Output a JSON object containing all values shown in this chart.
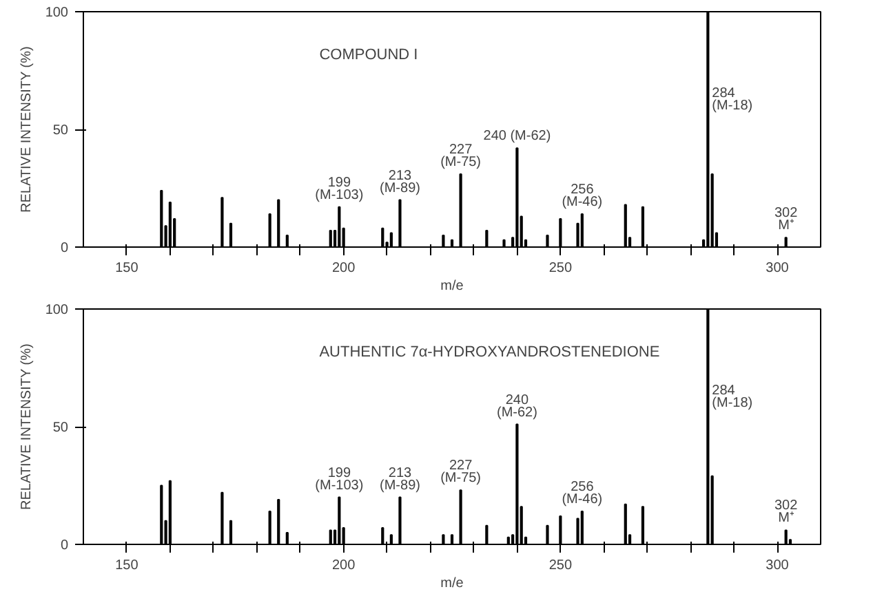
{
  "chart_data": [
    {
      "type": "bar",
      "title": "COMPOUND I",
      "xlabel": "m/e",
      "ylabel": "RELATIVE INTENSITY (%)",
      "xlim": [
        140,
        310
      ],
      "ylim": [
        0,
        100
      ],
      "xticks": [
        150,
        {
          "value": 160,
          "label": null
        },
        {
          "value": 170,
          "label": null
        },
        {
          "value": 180,
          "label": null
        },
        {
          "value": 190,
          "label": null
        },
        200,
        {
          "value": 210,
          "label": null
        },
        {
          "value": 220,
          "label": null
        },
        {
          "value": 230,
          "label": null
        },
        {
          "value": 240,
          "label": null
        },
        250,
        {
          "value": 260,
          "label": null
        },
        {
          "value": 270,
          "label": null
        },
        {
          "value": 280,
          "label": null
        },
        {
          "value": 290,
          "label": null
        },
        300
      ],
      "yticks": [
        0,
        50,
        100
      ],
      "grid": false,
      "color": "#000000",
      "x": [
        158,
        159,
        160,
        161,
        172,
        174,
        183,
        185,
        187,
        197,
        198,
        199,
        200,
        209,
        210,
        211,
        213,
        223,
        225,
        227,
        233,
        237,
        239,
        240,
        241,
        242,
        247,
        250,
        254,
        255,
        265,
        266,
        269,
        283,
        284,
        285,
        286,
        302
      ],
      "values": [
        24,
        9,
        19,
        12,
        21,
        10,
        14,
        20,
        5,
        7,
        7,
        17,
        8,
        8,
        2,
        6,
        20,
        5,
        3,
        31,
        7,
        3,
        4,
        42,
        13,
        3,
        5,
        12,
        10,
        14,
        18,
        4,
        17,
        3,
        100,
        31,
        6,
        4
      ],
      "annotations": [
        {
          "text": "199\n(M-103)",
          "x": 199,
          "y": 17
        },
        {
          "text": "213\n(M-89)",
          "x": 213,
          "y": 20
        },
        {
          "text": "227\n(M-75)",
          "x": 227,
          "y": 31
        },
        {
          "text": "240 (M-62)",
          "x": 240,
          "y": 42
        },
        {
          "text": "256\n(M-46)",
          "x": 255,
          "y": 14
        },
        {
          "text": "284\n(M-18)",
          "x": 284,
          "y": 58
        },
        {
          "text": "302\nM⁺",
          "x": 302,
          "y": 4
        }
      ]
    },
    {
      "type": "bar",
      "title": "AUTHENTIC 7α-HYDROXYANDROSTENEDIONE",
      "xlabel": "m/e",
      "ylabel": "RELATIVE INTENSITY (%)",
      "xlim": [
        140,
        310
      ],
      "ylim": [
        0,
        100
      ],
      "xticks": [
        150,
        {
          "value": 160,
          "label": null
        },
        {
          "value": 170,
          "label": null
        },
        {
          "value": 180,
          "label": null
        },
        {
          "value": 190,
          "label": null
        },
        200,
        {
          "value": 210,
          "label": null
        },
        {
          "value": 220,
          "label": null
        },
        {
          "value": 230,
          "label": null
        },
        {
          "value": 240,
          "label": null
        },
        250,
        {
          "value": 260,
          "label": null
        },
        {
          "value": 270,
          "label": null
        },
        {
          "value": 280,
          "label": null
        },
        {
          "value": 290,
          "label": null
        },
        300
      ],
      "yticks": [
        0,
        50,
        100
      ],
      "grid": false,
      "color": "#000000",
      "x": [
        158,
        159,
        160,
        172,
        174,
        183,
        185,
        187,
        197,
        198,
        199,
        200,
        209,
        211,
        213,
        223,
        225,
        227,
        233,
        238,
        239,
        240,
        241,
        242,
        247,
        250,
        254,
        255,
        265,
        266,
        269,
        284,
        285,
        302,
        303
      ],
      "values": [
        25,
        10,
        27,
        22,
        10,
        14,
        19,
        5,
        6,
        6,
        20,
        7,
        7,
        4,
        20,
        4,
        4,
        23,
        8,
        3,
        4,
        51,
        16,
        3,
        8,
        12,
        11,
        14,
        17,
        4,
        16,
        100,
        29,
        6,
        2
      ],
      "annotations": [
        {
          "text": "199\n(M-103)",
          "x": 199,
          "y": 20
        },
        {
          "text": "213\n(M-89)",
          "x": 213,
          "y": 20
        },
        {
          "text": "227\n(M-75)",
          "x": 227,
          "y": 23
        },
        {
          "text": "240\n(M-62)",
          "x": 240,
          "y": 51
        },
        {
          "text": "256\n(M-46)",
          "x": 255,
          "y": 14
        },
        {
          "text": "284\n(M-18)",
          "x": 284,
          "y": 58
        },
        {
          "text": "302\nM⁺",
          "x": 302,
          "y": 6
        }
      ]
    }
  ]
}
